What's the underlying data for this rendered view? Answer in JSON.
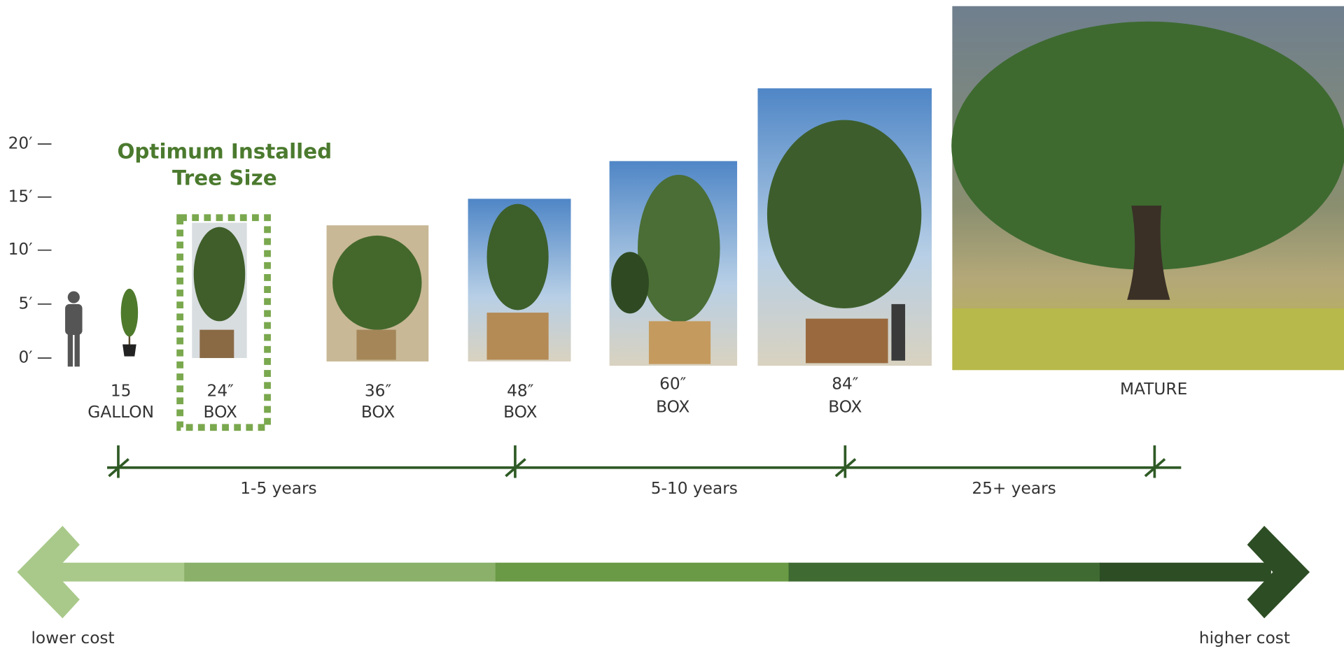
{
  "height_scale": [
    "20′",
    "15′",
    "10′",
    "5′",
    "0′"
  ],
  "highlight": {
    "lines": [
      "Optimum Installed",
      "Tree Size"
    ]
  },
  "sizes": [
    {
      "lines": [
        "15",
        "GALLON"
      ]
    },
    {
      "lines": [
        "24″",
        "BOX"
      ]
    },
    {
      "lines": [
        "36″",
        "BOX"
      ]
    },
    {
      "lines": [
        "48″",
        "BOX"
      ]
    },
    {
      "lines": [
        "60″",
        "BOX"
      ]
    },
    {
      "lines": [
        "84″",
        "BOX"
      ]
    },
    {
      "lines": [
        "MATURE"
      ]
    }
  ],
  "timeline": [
    "1-5 years",
    "5-10 years",
    "25+ years"
  ],
  "cost": {
    "low": "lower cost",
    "high": "higher cost"
  }
}
